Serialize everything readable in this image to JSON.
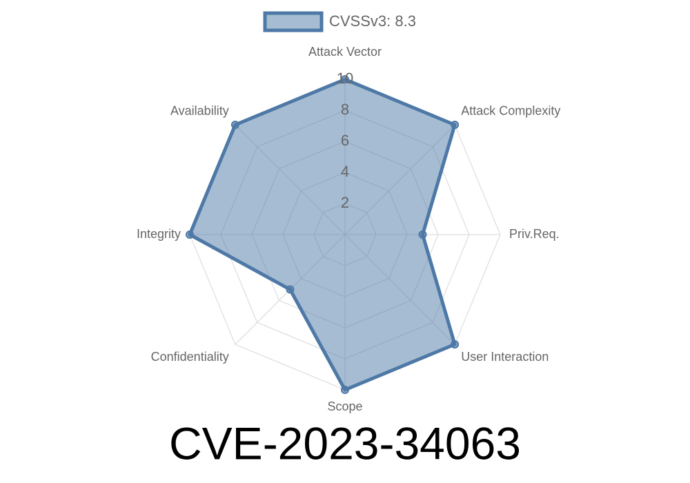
{
  "chart_data": {
    "type": "radar",
    "title": "CVE-2023-34063",
    "categories": [
      "Attack Vector",
      "Attack Complexity",
      "Priv.Req.",
      "User Interaction",
      "Scope",
      "Confidentiality",
      "Integrity",
      "Availability"
    ],
    "series": [
      {
        "name": "CVSSv3: 8.3",
        "color": "#4e79a7",
        "values": [
          10,
          10,
          5,
          10,
          10,
          5,
          10,
          10
        ]
      }
    ],
    "ylim": [
      0,
      10
    ],
    "yticks": [
      2,
      4,
      6,
      8,
      10
    ],
    "grid": true,
    "legend": "top"
  }
}
